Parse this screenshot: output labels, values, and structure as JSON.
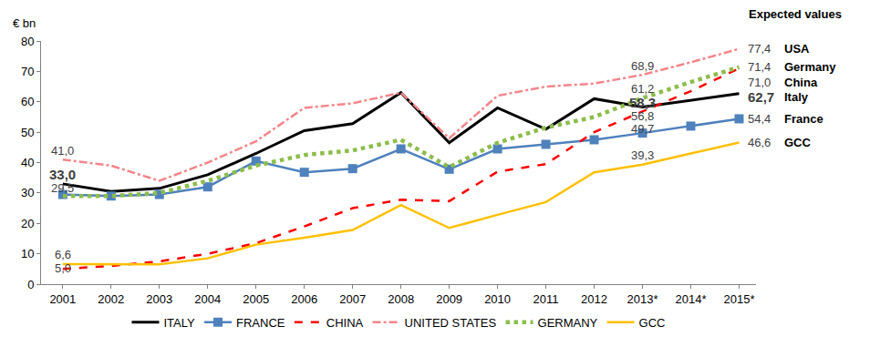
{
  "chart_data": {
    "type": "line",
    "ylabel": "€ bn",
    "annotations": [
      "Expected values"
    ],
    "categories": [
      "2001",
      "2002",
      "2003",
      "2004",
      "2005",
      "2006",
      "2007",
      "2008",
      "2009",
      "2010",
      "2011",
      "2012",
      "2013*",
      "2014*",
      "2015*"
    ],
    "ylim": [
      0,
      80
    ],
    "yticks": [
      0,
      10,
      20,
      30,
      40,
      50,
      60,
      70,
      80
    ],
    "grid": false,
    "legend": "bottom",
    "series": [
      {
        "name": "ITALY",
        "end_label": "Italy",
        "color": "#000000",
        "line_style": "solid",
        "values": [
          33.0,
          30.5,
          31.5,
          36,
          43,
          50.5,
          52.8,
          63,
          46.5,
          58,
          51,
          61,
          58.3,
          60.5,
          62.7
        ],
        "value_labels": [
          "33,0",
          null,
          null,
          null,
          null,
          null,
          null,
          null,
          null,
          null,
          null,
          null,
          "58,3",
          null,
          "62,7"
        ]
      },
      {
        "name": "FRANCE",
        "end_label": "France",
        "color": "#4f81bd",
        "line_style": "solid",
        "marker": "square",
        "values": [
          29.5,
          29,
          29.5,
          32,
          40.5,
          36.8,
          38,
          44.5,
          37.8,
          44.5,
          46,
          47.5,
          49.7,
          52,
          54.4
        ],
        "value_labels": [
          "29,5",
          null,
          null,
          null,
          null,
          null,
          null,
          null,
          null,
          null,
          null,
          null,
          "49,7",
          null,
          "54,4"
        ]
      },
      {
        "name": "CHINA",
        "end_label": "China",
        "color": "#ff0000",
        "line_style": "dash",
        "values": [
          5.0,
          6,
          7.5,
          10,
          13.5,
          19,
          25,
          27.8,
          27.3,
          37,
          39.5,
          50,
          56.8,
          63.5,
          71.0
        ],
        "value_labels": [
          "5,0",
          null,
          null,
          null,
          null,
          null,
          null,
          null,
          null,
          null,
          null,
          null,
          "56,8",
          null,
          "71,0"
        ]
      },
      {
        "name": "UNITED STATES",
        "end_label": "USA",
        "color": "#f4858a",
        "line_style": "dashdot",
        "values": [
          41.0,
          39,
          34,
          40,
          47,
          58,
          59.5,
          63,
          48,
          62,
          65,
          66,
          68.9,
          73,
          77.4
        ],
        "value_labels": [
          "41,0",
          null,
          null,
          null,
          null,
          null,
          null,
          null,
          null,
          null,
          null,
          null,
          "68,9",
          null,
          "77,4"
        ]
      },
      {
        "name": "GERMANY",
        "end_label": "Germany",
        "color": "#8cbd4a",
        "line_style": "dot",
        "values": [
          29,
          29,
          30,
          34,
          39,
          42.5,
          44,
          47.5,
          38.5,
          46.5,
          51.5,
          55,
          61.2,
          66.5,
          71.4
        ],
        "value_labels": [
          null,
          null,
          null,
          null,
          null,
          null,
          null,
          null,
          null,
          null,
          null,
          null,
          "61,2",
          null,
          "71,4"
        ]
      },
      {
        "name": "GCC",
        "end_label": "GCC",
        "color": "#ffc000",
        "line_style": "solid",
        "values": [
          6.6,
          6.5,
          6.5,
          8.5,
          13,
          15.3,
          17.8,
          26,
          18.5,
          22.8,
          27,
          36.8,
          39.3,
          43,
          46.6
        ],
        "value_labels": [
          "6,6",
          null,
          null,
          null,
          null,
          null,
          null,
          null,
          null,
          null,
          null,
          null,
          "39,3",
          null,
          "46,6"
        ]
      }
    ]
  }
}
